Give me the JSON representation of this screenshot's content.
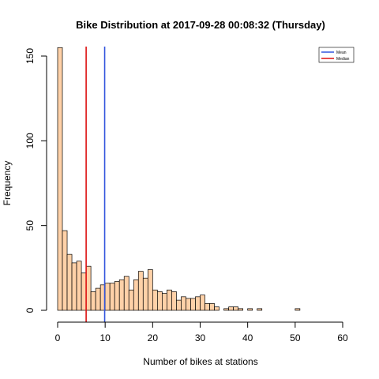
{
  "chart_data": {
    "type": "bar",
    "title": "Bike Distribution at  2017-09-28 00:08:32  (Thursday)",
    "xlabel": "Number of bikes at stations",
    "ylabel": "Frequency",
    "xlim": [
      0,
      60
    ],
    "ylim": [
      0,
      150
    ],
    "xticks": [
      0,
      10,
      20,
      30,
      40,
      50,
      60
    ],
    "yticks": [
      0,
      50,
      100,
      150
    ],
    "bin_width": 1,
    "bin_start": 0,
    "bar_fill": "#FFD1A8",
    "bar_stroke": "#000000",
    "values": [
      155,
      47,
      33,
      28,
      29,
      22,
      26,
      11,
      13,
      15,
      16,
      16,
      17,
      18,
      20,
      12,
      18,
      23,
      19,
      24,
      12,
      11,
      10,
      12,
      11,
      6,
      8,
      7,
      7,
      8,
      9,
      4,
      4,
      2,
      0,
      1,
      2,
      2,
      1,
      0,
      1,
      0,
      1,
      0,
      0,
      0,
      0,
      0,
      0,
      0,
      1
    ],
    "mean": 9.9,
    "median": 6,
    "mean_color": "#3355DD",
    "median_color": "#DD1111",
    "legend": {
      "position": "top-right",
      "entries": [
        {
          "label": "Mean",
          "color": "#3355DD"
        },
        {
          "label": "Median",
          "color": "#DD1111"
        }
      ]
    }
  }
}
